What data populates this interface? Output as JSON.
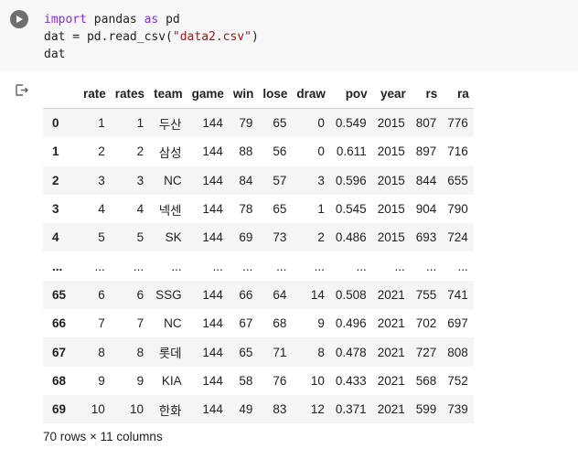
{
  "code": {
    "line1": {
      "kw1": "import",
      "mid": " pandas ",
      "kw2": "as",
      "end": " pd"
    },
    "line2": {
      "start": "dat = pd.read_csv(",
      "str": "\"data2.csv\"",
      "end": ")"
    },
    "line3": "dat"
  },
  "table": {
    "columns": [
      "rate",
      "rates",
      "team",
      "game",
      "win",
      "lose",
      "draw",
      "pov",
      "year",
      "rs",
      "ra"
    ],
    "rows": [
      {
        "index": "0",
        "cells": [
          "1",
          "1",
          "두산",
          "144",
          "79",
          "65",
          "0",
          "0.549",
          "2015",
          "807",
          "776"
        ]
      },
      {
        "index": "1",
        "cells": [
          "2",
          "2",
          "삼성",
          "144",
          "88",
          "56",
          "0",
          "0.611",
          "2015",
          "897",
          "716"
        ]
      },
      {
        "index": "2",
        "cells": [
          "3",
          "3",
          "NC",
          "144",
          "84",
          "57",
          "3",
          "0.596",
          "2015",
          "844",
          "655"
        ]
      },
      {
        "index": "3",
        "cells": [
          "4",
          "4",
          "넥센",
          "144",
          "78",
          "65",
          "1",
          "0.545",
          "2015",
          "904",
          "790"
        ]
      },
      {
        "index": "4",
        "cells": [
          "5",
          "5",
          "SK",
          "144",
          "69",
          "73",
          "2",
          "0.486",
          "2015",
          "693",
          "724"
        ]
      },
      {
        "index": "...",
        "cells": [
          "...",
          "...",
          "...",
          "...",
          "...",
          "...",
          "...",
          "...",
          "...",
          "...",
          "..."
        ]
      },
      {
        "index": "65",
        "cells": [
          "6",
          "6",
          "SSG",
          "144",
          "66",
          "64",
          "14",
          "0.508",
          "2021",
          "755",
          "741"
        ]
      },
      {
        "index": "66",
        "cells": [
          "7",
          "7",
          "NC",
          "144",
          "67",
          "68",
          "9",
          "0.496",
          "2021",
          "702",
          "697"
        ]
      },
      {
        "index": "67",
        "cells": [
          "8",
          "8",
          "롯데",
          "144",
          "65",
          "71",
          "8",
          "0.478",
          "2021",
          "727",
          "808"
        ]
      },
      {
        "index": "68",
        "cells": [
          "9",
          "9",
          "KIA",
          "144",
          "58",
          "76",
          "10",
          "0.433",
          "2021",
          "568",
          "752"
        ]
      },
      {
        "index": "69",
        "cells": [
          "10",
          "10",
          "한화",
          "144",
          "49",
          "83",
          "12",
          "0.371",
          "2021",
          "599",
          "739"
        ]
      }
    ]
  },
  "summary": "70 rows × 11 columns",
  "icons": {
    "run": "play-icon",
    "output": "output-icon"
  }
}
